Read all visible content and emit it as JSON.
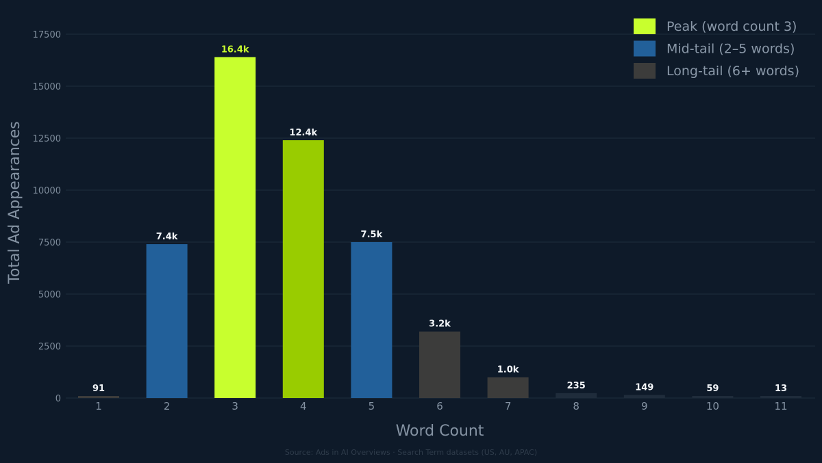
{
  "chart_data": {
    "type": "bar",
    "categories": [
      "1",
      "2",
      "3",
      "4",
      "5",
      "6",
      "7",
      "8",
      "9",
      "10",
      "11"
    ],
    "values": [
      91,
      7400,
      16400,
      12400,
      7500,
      3200,
      1000,
      235,
      149,
      59,
      13
    ],
    "data_labels": [
      "91",
      "7.4k",
      "16.4k",
      "12.4k",
      "7.5k",
      "3.2k",
      "1.0k",
      "235",
      "149",
      "59",
      "13"
    ],
    "bar_groups": [
      "long",
      "mid",
      "peak",
      "mid-green",
      "mid",
      "long",
      "long",
      "long-dim",
      "long-dim",
      "long-dim",
      "long-dim"
    ],
    "xlabel": "Word Count",
    "ylabel": "Total Ad Appearances",
    "ylim": [
      0,
      17500
    ],
    "yticks": [
      0,
      2500,
      5000,
      7500,
      10000,
      12500,
      15000,
      17500
    ],
    "grid": true,
    "legend_position": "top-right",
    "legend": [
      {
        "label": "Peak (word count 3)",
        "color": "#c8ff2e"
      },
      {
        "label": "Mid-tail (2–5 words)",
        "color": "#22609a"
      },
      {
        "label": "Long-tail (6+ words)",
        "color": "#3c3c3b"
      }
    ],
    "colors": {
      "peak": "#c8ff2e",
      "mid-green": "#99cc00",
      "mid": "#22609a",
      "long": "#3c3c3b",
      "long-dim": "#1f2c3b",
      "background": "#0e1a29",
      "grid": "#1f2d3d"
    },
    "source": "Source: Ads in AI Overviews · Search Term datasets (US, AU, APAC)"
  }
}
